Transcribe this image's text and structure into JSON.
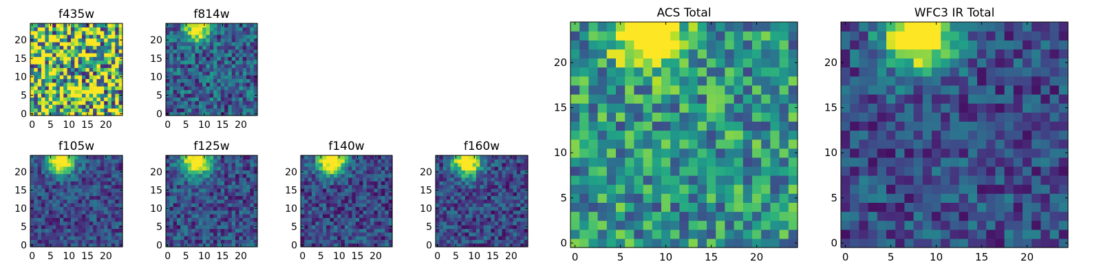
{
  "figure": {
    "colormap": "viridis",
    "background": "#ffffff"
  },
  "chart_data": [
    {
      "type": "heatmap",
      "title": "f435w",
      "size": 25,
      "xticks": [
        0,
        5,
        10,
        15,
        20
      ],
      "yticks": [
        0,
        5,
        10,
        15,
        20
      ],
      "xlim": [
        0,
        25
      ],
      "ylim": [
        0,
        25
      ],
      "noise": 0.62,
      "mean": 0.72,
      "source": null
    },
    {
      "type": "heatmap",
      "title": "f814w",
      "size": 25,
      "xticks": [
        0,
        5,
        10,
        15,
        20
      ],
      "yticks": [
        0,
        5,
        10,
        15,
        20
      ],
      "xlim": [
        0,
        25
      ],
      "ylim": [
        0,
        25
      ],
      "noise": 0.25,
      "mean": 0.3,
      "source": {
        "x": 8,
        "y": 23,
        "amp": 0.9,
        "sigma": 2.2
      }
    },
    {
      "type": "heatmap",
      "title": "f105w",
      "size": 25,
      "xticks": [
        0,
        5,
        10,
        15,
        20
      ],
      "yticks": [
        0,
        5,
        10,
        15,
        20
      ],
      "xlim": [
        0,
        25
      ],
      "ylim": [
        0,
        25
      ],
      "noise": 0.18,
      "mean": 0.22,
      "source": {
        "x": 8,
        "y": 23,
        "amp": 1.0,
        "sigma": 2.6
      }
    },
    {
      "type": "heatmap",
      "title": "f125w",
      "size": 25,
      "xticks": [
        0,
        5,
        10,
        15,
        20
      ],
      "yticks": [
        0,
        5,
        10,
        15,
        20
      ],
      "xlim": [
        0,
        25
      ],
      "ylim": [
        0,
        25
      ],
      "noise": 0.2,
      "mean": 0.24,
      "source": {
        "x": 8,
        "y": 23,
        "amp": 1.0,
        "sigma": 2.7
      }
    },
    {
      "type": "heatmap",
      "title": "f140w",
      "size": 25,
      "xticks": [
        0,
        5,
        10,
        15,
        20
      ],
      "yticks": [
        0,
        5,
        10,
        15,
        20
      ],
      "xlim": [
        0,
        25
      ],
      "ylim": [
        0,
        25
      ],
      "noise": 0.2,
      "mean": 0.22,
      "source": {
        "x": 8,
        "y": 23,
        "amp": 1.0,
        "sigma": 2.7
      }
    },
    {
      "type": "heatmap",
      "title": "f160w",
      "size": 25,
      "xticks": [
        0,
        5,
        10,
        15,
        20
      ],
      "yticks": [
        0,
        5,
        10,
        15,
        20
      ],
      "xlim": [
        0,
        25
      ],
      "ylim": [
        0,
        25
      ],
      "noise": 0.2,
      "mean": 0.22,
      "source": {
        "x": 8,
        "y": 23,
        "amp": 1.0,
        "sigma": 2.7
      }
    },
    {
      "type": "heatmap",
      "title": "ACS Total",
      "size": 25,
      "xticks": [
        0,
        5,
        10,
        15,
        20
      ],
      "yticks": [
        0,
        5,
        10,
        15,
        20
      ],
      "xlim": [
        0,
        25
      ],
      "ylim": [
        0,
        25
      ],
      "noise": 0.3,
      "mean": 0.52,
      "source": {
        "x": 8,
        "y": 23,
        "amp": 0.9,
        "sigma": 2.4
      }
    },
    {
      "type": "heatmap",
      "title": "WFC3 IR Total",
      "size": 25,
      "xticks": [
        0,
        5,
        10,
        15,
        20
      ],
      "yticks": [
        0,
        5,
        10,
        15,
        20
      ],
      "xlim": [
        0,
        25
      ],
      "ylim": [
        0,
        25
      ],
      "noise": 0.2,
      "mean": 0.24,
      "source": {
        "x": 8,
        "y": 23,
        "amp": 1.0,
        "sigma": 2.7
      }
    }
  ]
}
